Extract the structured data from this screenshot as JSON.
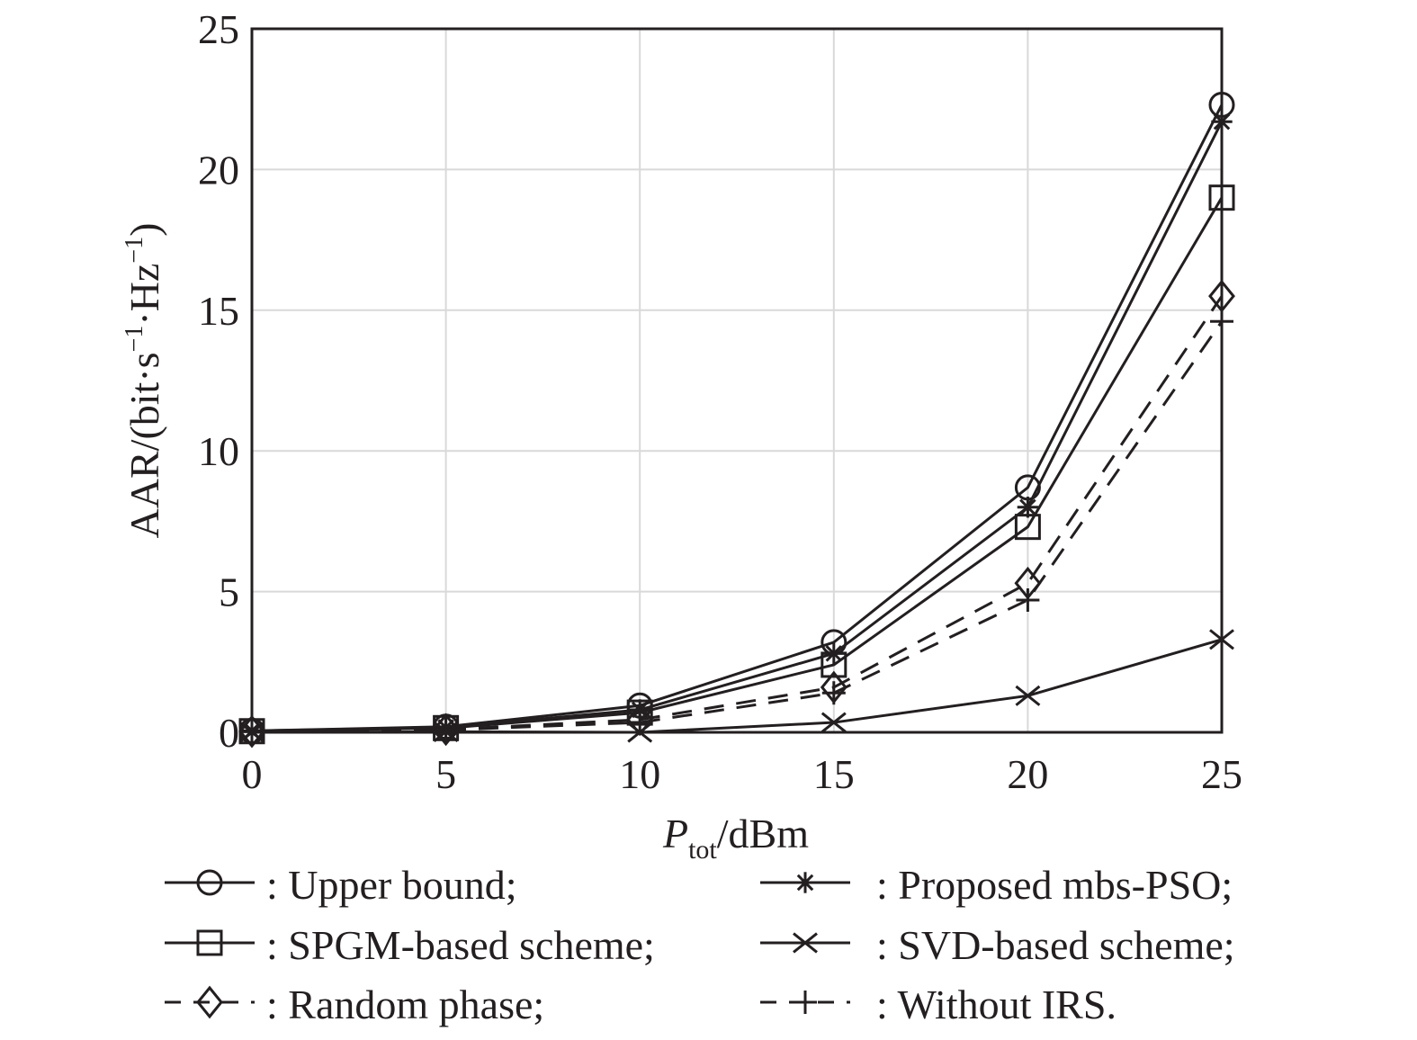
{
  "chart_data": {
    "type": "line",
    "title": "",
    "xlabel": "P_tot/dBm",
    "xlabel_parts": {
      "main": "P",
      "sub": "tot",
      "unit": "/dBm"
    },
    "ylabel": "AAR/(bit·s⁻¹·Hz⁻¹)",
    "ylabel_parts": {
      "prefix": "AAR/(bit·s",
      "sup1": "−1",
      "mid": "·Hz",
      "sup2": "−1",
      "suffix": ")"
    },
    "xlim": [
      0,
      25
    ],
    "ylim": [
      0,
      25
    ],
    "xticks": [
      0,
      5,
      10,
      15,
      20,
      25
    ],
    "yticks": [
      0,
      5,
      10,
      15,
      20,
      25
    ],
    "xtick_labels": [
      "0",
      "5",
      "10",
      "15",
      "20",
      "25"
    ],
    "ytick_labels": [
      "0",
      "5",
      "10",
      "15",
      "20",
      "25"
    ],
    "grid": true,
    "legend_position": "bottom",
    "x": [
      0,
      5,
      10,
      15,
      20,
      25
    ],
    "series": [
      {
        "name": "Upper bound",
        "legend_label": ": Upper bound;",
        "marker": "circle",
        "line": "solid",
        "values": [
          0.05,
          0.2,
          0.95,
          3.2,
          8.7,
          22.3
        ]
      },
      {
        "name": "SPGM-based scheme",
        "legend_label": ": SPGM-based scheme;",
        "marker": "square",
        "line": "solid",
        "values": [
          0.04,
          0.15,
          0.7,
          2.4,
          7.3,
          19.0
        ]
      },
      {
        "name": "Random phase",
        "legend_label": ": Random phase;",
        "marker": "diamond",
        "line": "dashed",
        "values": [
          0.03,
          0.1,
          0.45,
          1.6,
          5.3,
          15.5
        ]
      },
      {
        "name": "Proposed mbs-PSO",
        "legend_label": ": Proposed mbs-PSO;",
        "marker": "asterisk",
        "line": "solid",
        "values": [
          0.05,
          0.17,
          0.8,
          2.8,
          8.0,
          21.7
        ]
      },
      {
        "name": "SVD-based scheme",
        "legend_label": ": SVD-based scheme;",
        "marker": "x",
        "line": "solid",
        "values": [
          0.0,
          0.02,
          0.0,
          0.35,
          1.3,
          3.3
        ]
      },
      {
        "name": "Without IRS",
        "legend_label": ": Without IRS.",
        "marker": "plus",
        "line": "dashed",
        "values": [
          0.02,
          0.08,
          0.35,
          1.4,
          4.7,
          14.6
        ]
      }
    ]
  },
  "colors": {
    "ink": "#231f20",
    "grid": "#d9d9d9",
    "background": "#ffffff"
  }
}
